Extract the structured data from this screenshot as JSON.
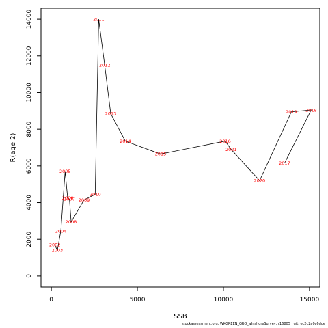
{
  "chart_data": {
    "type": "line",
    "xlabel": "SSB",
    "ylabel": "R(age 2)",
    "xlim": [
      -600,
      15600
    ],
    "ylim": [
      -600,
      14600
    ],
    "x_ticks": [
      0,
      5000,
      10000,
      15000
    ],
    "y_ticks": [
      0,
      2000,
      4000,
      6000,
      8000,
      10000,
      12000,
      14000
    ],
    "grid": false,
    "line_color": "#000000",
    "label_color": "#ff0000",
    "points": [
      {
        "year": "2002",
        "x": 200,
        "y": 1700
      },
      {
        "year": "2003",
        "x": 350,
        "y": 1400
      },
      {
        "year": "2004",
        "x": 550,
        "y": 2450
      },
      {
        "year": "2005",
        "x": 800,
        "y": 5700
      },
      {
        "year": "2006",
        "x": 950,
        "y": 4250
      },
      {
        "year": "2007",
        "x": 1050,
        "y": 4200
      },
      {
        "year": "2008",
        "x": 1150,
        "y": 2950
      },
      {
        "year": "2009",
        "x": 1900,
        "y": 4150
      },
      {
        "year": "2010",
        "x": 2550,
        "y": 4450
      },
      {
        "year": "2011",
        "x": 2750,
        "y": 14000
      },
      {
        "year": "2012",
        "x": 3100,
        "y": 11500
      },
      {
        "year": "2013",
        "x": 3450,
        "y": 8850
      },
      {
        "year": "2014",
        "x": 4300,
        "y": 7350
      },
      {
        "year": "2015",
        "x": 6350,
        "y": 6650
      },
      {
        "year": "2016",
        "x": 10100,
        "y": 7350
      },
      {
        "year": "2021",
        "x": 10450,
        "y": 6900
      },
      {
        "year": "2020",
        "x": 12100,
        "y": 5200
      },
      {
        "year": "2019",
        "x": 13950,
        "y": 8950
      },
      {
        "year": "2018",
        "x": 15100,
        "y": 9050
      },
      {
        "year": "2017",
        "x": 13550,
        "y": 6150
      }
    ]
  },
  "footer": "stockassessment.org, WKGREEN_GRO_wInshoreSurvey, r16805 , git: ec2c2a0c6dde"
}
